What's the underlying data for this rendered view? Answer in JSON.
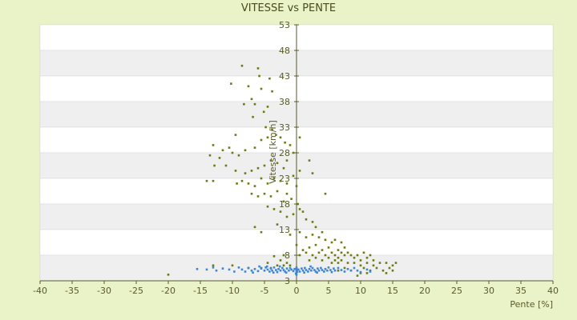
{
  "chart_data": {
    "type": "scatter",
    "title": "VITESSE vs PENTE",
    "xlabel": "Pente [%]",
    "ylabel": "Vitesse [km/h]",
    "xlim": [
      -40,
      40
    ],
    "ylim": [
      3,
      53
    ],
    "xticks": [
      "-40",
      "-35",
      "-30",
      "-25",
      "-20",
      "-15",
      "-10",
      "-5",
      "0",
      "5",
      "10",
      "15",
      "20",
      "25",
      "30",
      "35",
      "40"
    ],
    "yticks": [
      "3",
      "8",
      "13",
      "18",
      "23",
      "28",
      "33",
      "38",
      "43",
      "48",
      "53"
    ],
    "grid": "alternating horizontal bands",
    "legend": "none",
    "colors": {
      "series_green": "#6b7a12",
      "series_blue": "#3a86d8",
      "band_grey": "#efefef",
      "plot_bg": "#ffffff",
      "page_bg": "#eaf2c8"
    },
    "series": [
      {
        "color": "#6b7a12",
        "points": [
          [
            -8.5,
            45.0
          ],
          [
            -6.0,
            44.5
          ],
          [
            -5.8,
            43.0
          ],
          [
            -4.2,
            42.5
          ],
          [
            -7.5,
            41.0
          ],
          [
            -10.2,
            41.5
          ],
          [
            -5.5,
            40.5
          ],
          [
            -3.8,
            40.0
          ],
          [
            -7.0,
            38.5
          ],
          [
            -6.5,
            37.5
          ],
          [
            -8.2,
            37.5
          ],
          [
            -4.5,
            37.0
          ],
          [
            -5.1,
            36.0
          ],
          [
            -6.8,
            35.0
          ],
          [
            -4.8,
            33.0
          ],
          [
            -9.5,
            31.5
          ],
          [
            -13.0,
            29.5
          ],
          [
            -10.5,
            29.0
          ],
          [
            -11.5,
            28.5
          ],
          [
            -13.5,
            27.5
          ],
          [
            -12.0,
            27.0
          ],
          [
            -10.0,
            28.0
          ],
          [
            -9.0,
            27.5
          ],
          [
            -8.0,
            28.5
          ],
          [
            -6.5,
            29.0
          ],
          [
            -5.5,
            30.5
          ],
          [
            -4.5,
            31.0
          ],
          [
            -3.8,
            32.5
          ],
          [
            -3.2,
            31.5
          ],
          [
            -2.5,
            31.0
          ],
          [
            -1.8,
            30.0
          ],
          [
            -1.0,
            29.5
          ],
          [
            -0.5,
            28.0
          ],
          [
            0.5,
            31.0
          ],
          [
            -12.8,
            25.5
          ],
          [
            -11.0,
            25.5
          ],
          [
            -9.5,
            24.5
          ],
          [
            -8.0,
            24.0
          ],
          [
            -7.0,
            24.5
          ],
          [
            -6.0,
            25.0
          ],
          [
            -5.0,
            25.5
          ],
          [
            -4.0,
            26.5
          ],
          [
            -3.0,
            26.0
          ],
          [
            -2.0,
            25.0
          ],
          [
            -1.5,
            26.5
          ],
          [
            -14.0,
            22.5
          ],
          [
            -13.0,
            22.5
          ],
          [
            -9.3,
            22.0
          ],
          [
            -8.5,
            22.5
          ],
          [
            -7.5,
            22.0
          ],
          [
            -6.5,
            21.5
          ],
          [
            -5.5,
            23.0
          ],
          [
            -4.5,
            22.0
          ],
          [
            -3.5,
            23.0
          ],
          [
            -2.5,
            22.5
          ],
          [
            -1.5,
            22.0
          ],
          [
            -0.5,
            23.5
          ],
          [
            0.0,
            21.5
          ],
          [
            0.5,
            24.5
          ],
          [
            -7.0,
            20.0
          ],
          [
            -6.0,
            19.5
          ],
          [
            -5.0,
            20.0
          ],
          [
            -4.0,
            19.5
          ],
          [
            -3.0,
            20.5
          ],
          [
            -2.0,
            18.5
          ],
          [
            -1.5,
            20.0
          ],
          [
            -0.8,
            19.0
          ],
          [
            0.2,
            18.0
          ],
          [
            -4.5,
            17.5
          ],
          [
            -3.5,
            17.0
          ],
          [
            -2.5,
            16.5
          ],
          [
            -1.5,
            15.5
          ],
          [
            -0.5,
            16.0
          ],
          [
            0.5,
            17.0
          ],
          [
            1.0,
            16.5
          ],
          [
            2.0,
            26.5
          ],
          [
            2.5,
            24.0
          ],
          [
            4.5,
            20.0
          ],
          [
            1.5,
            15.0
          ],
          [
            2.5,
            14.5
          ],
          [
            3.0,
            13.5
          ],
          [
            4.0,
            12.5
          ],
          [
            -3.0,
            14.0
          ],
          [
            -5.5,
            12.5
          ],
          [
            -6.5,
            13.5
          ],
          [
            -1.0,
            12.0
          ],
          [
            0.5,
            12.5
          ],
          [
            1.5,
            11.5
          ],
          [
            2.5,
            12.0
          ],
          [
            3.5,
            11.5
          ],
          [
            4.5,
            11.0
          ],
          [
            5.5,
            10.5
          ],
          [
            6.0,
            11.0
          ],
          [
            7.0,
            10.5
          ],
          [
            7.5,
            9.5
          ],
          [
            6.5,
            9.0
          ],
          [
            5.0,
            9.5
          ],
          [
            4.0,
            9.0
          ],
          [
            3.0,
            10.0
          ],
          [
            2.0,
            9.5
          ],
          [
            1.0,
            9.0
          ],
          [
            0.5,
            8.0
          ],
          [
            1.5,
            8.5
          ],
          [
            2.5,
            8.0
          ],
          [
            3.5,
            8.5
          ],
          [
            4.5,
            8.0
          ],
          [
            5.5,
            8.5
          ],
          [
            6.0,
            8.0
          ],
          [
            6.5,
            7.5
          ],
          [
            7.0,
            8.5
          ],
          [
            7.5,
            8.0
          ],
          [
            8.0,
            8.5
          ],
          [
            8.5,
            8.0
          ],
          [
            9.0,
            7.5
          ],
          [
            9.5,
            8.0
          ],
          [
            10.0,
            7.0
          ],
          [
            10.5,
            8.5
          ],
          [
            11.0,
            7.5
          ],
          [
            11.5,
            8.0
          ],
          [
            12.0,
            7.0
          ],
          [
            2.0,
            7.0
          ],
          [
            3.0,
            7.5
          ],
          [
            4.0,
            7.0
          ],
          [
            5.0,
            7.5
          ],
          [
            5.5,
            6.5
          ],
          [
            6.0,
            7.0
          ],
          [
            6.5,
            6.5
          ],
          [
            7.0,
            7.0
          ],
          [
            8.0,
            6.5
          ],
          [
            9.0,
            6.5
          ],
          [
            10.0,
            6.0
          ],
          [
            11.0,
            6.5
          ],
          [
            12.0,
            6.0
          ],
          [
            13.0,
            6.5
          ],
          [
            14.0,
            6.5
          ],
          [
            15.0,
            6.0
          ],
          [
            15.5,
            6.5
          ],
          [
            14.5,
            5.5
          ],
          [
            13.5,
            5.0
          ],
          [
            12.5,
            5.5
          ],
          [
            11.5,
            5.0
          ],
          [
            10.5,
            5.5
          ],
          [
            10.0,
            4.5
          ],
          [
            11.0,
            4.5
          ],
          [
            9.5,
            4.0
          ],
          [
            8.5,
            5.0
          ],
          [
            7.5,
            5.5
          ],
          [
            6.5,
            5.0
          ],
          [
            14.0,
            4.5
          ],
          [
            15.0,
            5.0
          ],
          [
            -13.0,
            6.0
          ],
          [
            -10.0,
            6.0
          ],
          [
            -7.5,
            5.5
          ],
          [
            -5.5,
            5.5
          ],
          [
            -4.5,
            6.5
          ],
          [
            -4.0,
            5.5
          ],
          [
            -3.0,
            6.0
          ],
          [
            -2.5,
            7.0
          ],
          [
            -2.0,
            6.0
          ],
          [
            -1.5,
            6.5
          ],
          [
            -1.0,
            6.0
          ],
          [
            -20.0,
            4.2
          ],
          [
            -2.0,
            8.0
          ],
          [
            -3.5,
            7.8
          ],
          [
            0.0,
            10.0
          ]
        ]
      },
      {
        "color": "#3a86d8",
        "points": [
          [
            -15.5,
            5.3
          ],
          [
            -14.0,
            5.2
          ],
          [
            -13.0,
            5.6
          ],
          [
            -12.5,
            5.0
          ],
          [
            -11.5,
            5.4
          ],
          [
            -10.5,
            5.2
          ],
          [
            -9.7,
            4.8
          ],
          [
            -9.0,
            5.6
          ],
          [
            -8.5,
            5.2
          ],
          [
            -8.0,
            4.8
          ],
          [
            -7.5,
            5.5
          ],
          [
            -7.0,
            5.0
          ],
          [
            -6.5,
            5.3
          ],
          [
            -6.0,
            4.9
          ],
          [
            -5.5,
            5.4
          ],
          [
            -5.0,
            5.0
          ],
          [
            -4.8,
            5.6
          ],
          [
            -4.5,
            5.2
          ],
          [
            -4.2,
            4.8
          ],
          [
            -4.0,
            5.4
          ],
          [
            -3.8,
            5.0
          ],
          [
            -3.5,
            5.6
          ],
          [
            -3.2,
            5.1
          ],
          [
            -3.0,
            4.7
          ],
          [
            -2.8,
            5.3
          ],
          [
            -2.5,
            5.0
          ],
          [
            -2.2,
            5.5
          ],
          [
            -2.0,
            5.1
          ],
          [
            -1.8,
            4.8
          ],
          [
            -1.5,
            5.4
          ],
          [
            -1.2,
            5.0
          ],
          [
            -1.0,
            5.5
          ],
          [
            -0.8,
            5.2
          ],
          [
            -0.5,
            4.9
          ],
          [
            -0.3,
            5.3
          ],
          [
            0.0,
            5.0
          ],
          [
            0.0,
            5.6
          ],
          [
            0.0,
            4.6
          ],
          [
            0.0,
            4.2
          ],
          [
            0.0,
            5.3
          ],
          [
            -0.1,
            4.4
          ],
          [
            0.1,
            4.8
          ],
          [
            0.3,
            5.2
          ],
          [
            0.5,
            4.8
          ],
          [
            0.8,
            5.4
          ],
          [
            1.0,
            5.0
          ],
          [
            1.3,
            5.5
          ],
          [
            1.5,
            5.1
          ],
          [
            1.8,
            4.8
          ],
          [
            2.0,
            5.3
          ],
          [
            2.3,
            5.0
          ],
          [
            2.5,
            5.5
          ],
          [
            2.8,
            5.1
          ],
          [
            3.0,
            4.8
          ],
          [
            3.3,
            5.4
          ],
          [
            3.5,
            5.0
          ],
          [
            3.8,
            5.5
          ],
          [
            4.0,
            5.1
          ],
          [
            4.3,
            4.8
          ],
          [
            4.5,
            5.3
          ],
          [
            4.8,
            5.0
          ],
          [
            5.0,
            5.6
          ],
          [
            5.3,
            5.1
          ],
          [
            5.5,
            4.7
          ],
          [
            5.8,
            5.4
          ],
          [
            6.0,
            5.0
          ],
          [
            6.5,
            5.5
          ],
          [
            7.0,
            5.1
          ],
          [
            7.5,
            4.8
          ],
          [
            8.0,
            5.3
          ],
          [
            8.5,
            5.0
          ],
          [
            9.0,
            5.5
          ],
          [
            9.5,
            5.0
          ],
          [
            10.0,
            4.7
          ],
          [
            11.0,
            5.2
          ],
          [
            11.5,
            4.8
          ],
          [
            -4.6,
            5.8
          ],
          [
            -3.6,
            4.6
          ],
          [
            -2.6,
            5.8
          ],
          [
            -1.6,
            4.6
          ],
          [
            1.2,
            4.6
          ],
          [
            2.2,
            5.8
          ],
          [
            3.2,
            4.6
          ],
          [
            -5.8,
            5.8
          ],
          [
            -6.8,
            4.6
          ]
        ]
      }
    ]
  }
}
